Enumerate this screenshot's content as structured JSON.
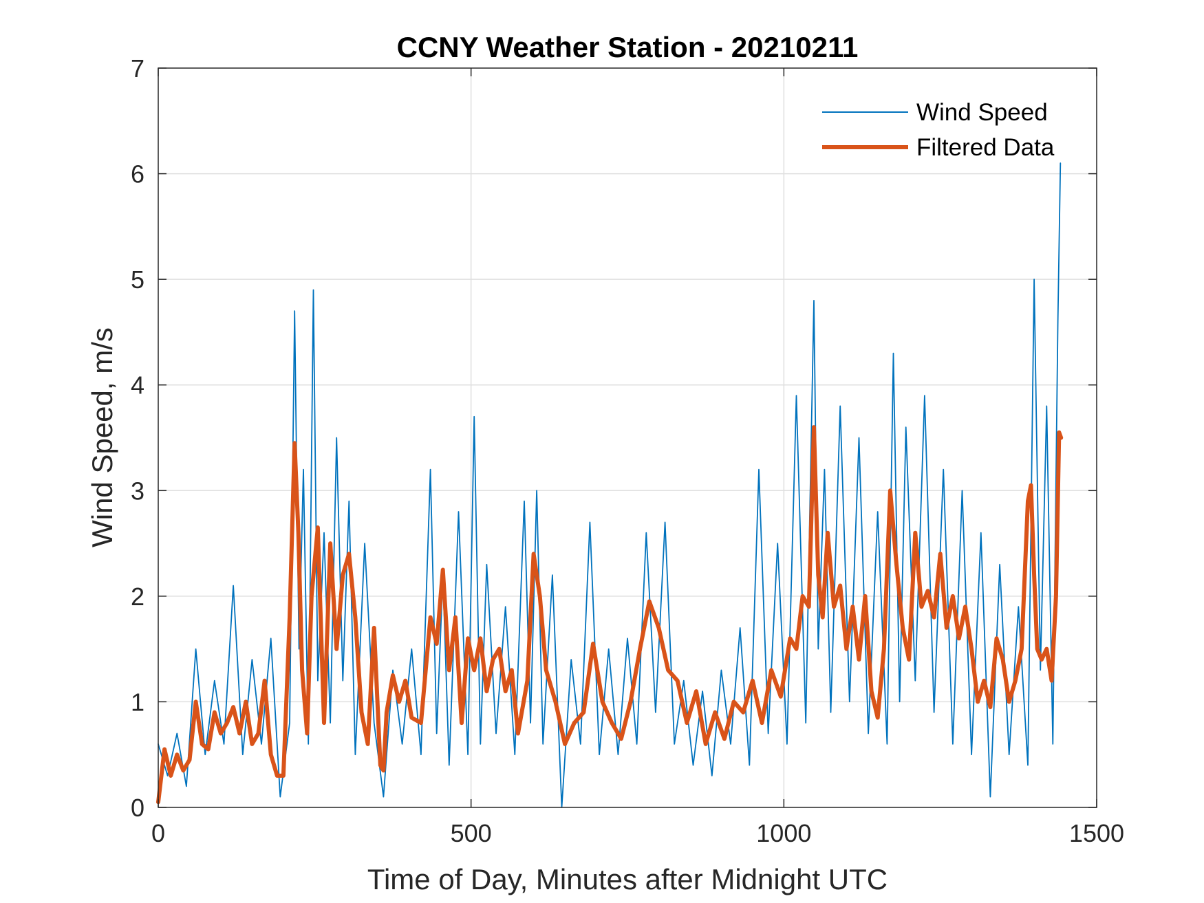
{
  "chart_data": {
    "type": "line",
    "title": "CCNY Weather Station - 20210211",
    "xlabel": "Time of Day, Minutes after Midnight UTC",
    "ylabel": "Wind Speed, m/s",
    "xlim": [
      0,
      1500
    ],
    "ylim": [
      0,
      7
    ],
    "xticks": [
      0,
      500,
      1000,
      1500
    ],
    "xtick_labels": [
      "0",
      "500",
      "1000",
      "1500"
    ],
    "yticks": [
      0,
      1,
      2,
      3,
      4,
      5,
      6,
      7
    ],
    "ytick_labels": [
      "0",
      "1",
      "2",
      "3",
      "4",
      "5",
      "6",
      "7"
    ],
    "grid": true,
    "legend_position": "top-right",
    "colors": {
      "raw": "#0072BD",
      "filtered": "#D95319",
      "grid": "#dfdfdf",
      "axis": "#262626"
    },
    "series": [
      {
        "name": "Wind Speed",
        "style": "thin",
        "x": [
          0,
          15,
          30,
          45,
          60,
          75,
          90,
          105,
          120,
          135,
          150,
          165,
          180,
          195,
          210,
          218,
          225,
          232,
          240,
          248,
          255,
          265,
          275,
          285,
          295,
          305,
          315,
          330,
          345,
          360,
          375,
          390,
          405,
          420,
          435,
          445,
          455,
          465,
          480,
          495,
          505,
          515,
          525,
          540,
          555,
          570,
          585,
          595,
          605,
          615,
          630,
          645,
          660,
          675,
          690,
          705,
          720,
          735,
          750,
          765,
          780,
          795,
          810,
          825,
          840,
          855,
          870,
          885,
          900,
          915,
          930,
          945,
          960,
          975,
          990,
          1005,
          1020,
          1035,
          1048,
          1055,
          1065,
          1075,
          1090,
          1105,
          1120,
          1135,
          1150,
          1165,
          1175,
          1185,
          1195,
          1210,
          1225,
          1240,
          1255,
          1270,
          1285,
          1300,
          1315,
          1330,
          1345,
          1360,
          1375,
          1390,
          1400,
          1410,
          1420,
          1430,
          1438,
          1442
        ],
        "values": [
          0.6,
          0.3,
          0.7,
          0.2,
          1.5,
          0.5,
          1.2,
          0.6,
          2.1,
          0.5,
          1.4,
          0.6,
          1.6,
          0.1,
          0.8,
          4.7,
          1.5,
          3.2,
          0.6,
          4.9,
          1.2,
          2.6,
          0.8,
          3.5,
          1.2,
          2.9,
          0.5,
          2.5,
          0.8,
          0.1,
          1.3,
          0.6,
          1.5,
          0.5,
          3.2,
          0.7,
          2.2,
          0.4,
          2.8,
          0.5,
          3.7,
          0.6,
          2.3,
          0.7,
          1.9,
          0.5,
          2.9,
          0.8,
          3.0,
          0.6,
          2.2,
          0.0,
          1.4,
          0.6,
          2.7,
          0.5,
          1.5,
          0.5,
          1.6,
          0.6,
          2.6,
          0.9,
          2.7,
          0.6,
          1.2,
          0.4,
          1.1,
          0.3,
          1.3,
          0.6,
          1.7,
          0.4,
          3.2,
          0.7,
          2.5,
          0.6,
          3.9,
          0.8,
          4.8,
          1.5,
          3.2,
          0.9,
          3.8,
          1.0,
          3.5,
          0.7,
          2.8,
          0.6,
          4.3,
          1.0,
          3.6,
          1.2,
          3.9,
          0.9,
          3.2,
          0.6,
          3.0,
          0.5,
          2.6,
          0.1,
          2.3,
          0.5,
          1.9,
          0.4,
          5.0,
          1.3,
          3.8,
          0.6,
          4.6,
          6.1
        ]
      },
      {
        "name": "Filtered Data",
        "style": "thick",
        "x": [
          0,
          10,
          20,
          30,
          40,
          50,
          60,
          70,
          80,
          90,
          100,
          110,
          120,
          130,
          140,
          150,
          160,
          170,
          180,
          190,
          200,
          210,
          218,
          224,
          230,
          238,
          245,
          255,
          265,
          275,
          285,
          295,
          305,
          315,
          325,
          335,
          345,
          355,
          360,
          365,
          375,
          385,
          395,
          405,
          420,
          435,
          445,
          455,
          465,
          475,
          485,
          495,
          505,
          515,
          525,
          535,
          545,
          555,
          565,
          575,
          590,
          600,
          610,
          620,
          635,
          650,
          665,
          680,
          695,
          710,
          725,
          740,
          755,
          770,
          785,
          800,
          815,
          830,
          845,
          860,
          875,
          890,
          905,
          920,
          935,
          950,
          965,
          980,
          995,
          1010,
          1020,
          1030,
          1040,
          1048,
          1055,
          1062,
          1070,
          1080,
          1090,
          1100,
          1110,
          1120,
          1130,
          1140,
          1150,
          1160,
          1170,
          1180,
          1190,
          1200,
          1210,
          1220,
          1230,
          1240,
          1250,
          1260,
          1270,
          1280,
          1290,
          1300,
          1310,
          1320,
          1330,
          1340,
          1350,
          1360,
          1370,
          1380,
          1390,
          1395,
          1400,
          1405,
          1412,
          1420,
          1428,
          1435,
          1440,
          1443
        ],
        "values": [
          0.05,
          0.55,
          0.3,
          0.5,
          0.35,
          0.45,
          1.0,
          0.6,
          0.55,
          0.9,
          0.7,
          0.8,
          0.95,
          0.7,
          1.0,
          0.6,
          0.7,
          1.2,
          0.5,
          0.3,
          0.3,
          1.8,
          3.45,
          2.6,
          1.3,
          0.7,
          2.0,
          2.65,
          0.8,
          2.5,
          1.5,
          2.2,
          2.4,
          1.8,
          0.9,
          0.6,
          1.7,
          0.4,
          0.35,
          0.9,
          1.25,
          1.0,
          1.2,
          0.85,
          0.8,
          1.8,
          1.55,
          2.25,
          1.3,
          1.8,
          0.8,
          1.6,
          1.3,
          1.6,
          1.1,
          1.4,
          1.5,
          1.1,
          1.3,
          0.7,
          1.2,
          2.4,
          2.0,
          1.3,
          1.0,
          0.6,
          0.8,
          0.9,
          1.55,
          1.0,
          0.8,
          0.65,
          1.0,
          1.5,
          1.95,
          1.7,
          1.3,
          1.2,
          0.8,
          1.1,
          0.6,
          0.9,
          0.65,
          1.0,
          0.9,
          1.2,
          0.8,
          1.3,
          1.05,
          1.6,
          1.5,
          2.0,
          1.9,
          3.6,
          2.2,
          1.8,
          2.6,
          1.9,
          2.1,
          1.5,
          1.9,
          1.4,
          2.0,
          1.1,
          0.85,
          1.5,
          3.0,
          2.3,
          1.7,
          1.4,
          2.6,
          1.9,
          2.05,
          1.8,
          2.4,
          1.7,
          2.0,
          1.6,
          1.9,
          1.5,
          1.0,
          1.2,
          0.95,
          1.6,
          1.4,
          1.0,
          1.2,
          1.5,
          2.9,
          3.05,
          2.2,
          1.5,
          1.4,
          1.5,
          1.2,
          2.0,
          3.55,
          3.5
        ]
      }
    ]
  }
}
